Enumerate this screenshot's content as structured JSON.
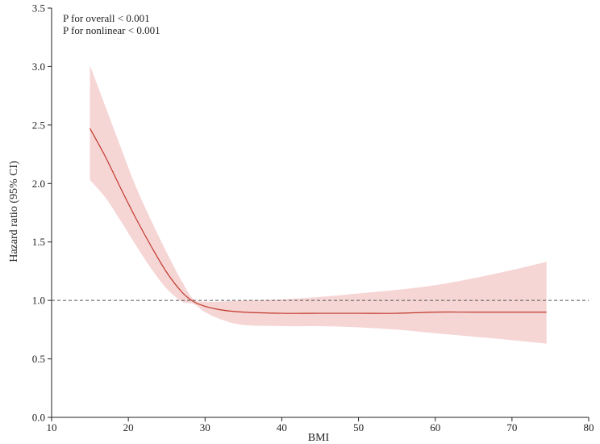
{
  "chart_data": {
    "type": "line",
    "xlabel": "BMI",
    "ylabel": "Hazard ratio (95% CI)",
    "xlim": [
      10,
      80
    ],
    "ylim": [
      0.0,
      3.5
    ],
    "xticks": [
      "10",
      "20",
      "30",
      "40",
      "50",
      "60",
      "70",
      "80"
    ],
    "yticks": [
      "0.0",
      "0.5",
      "1.0",
      "1.5",
      "2.0",
      "2.5",
      "3.0",
      "3.5"
    ],
    "annotations": [
      "P for overall < 0.001",
      "P for nonlinear < 0.001"
    ],
    "reference_line": {
      "y": 1.0,
      "style": "dashed",
      "color": "#555555"
    },
    "grid": false,
    "series": [
      {
        "color": "#c0392b",
        "band_color": "#f6d5d5",
        "x": [
          15,
          17,
          19,
          21,
          23,
          25,
          27,
          28.5,
          30,
          32,
          35,
          40,
          45,
          50,
          55,
          60,
          65,
          70,
          74.5
        ],
        "y": [
          2.47,
          2.23,
          1.96,
          1.7,
          1.46,
          1.24,
          1.07,
          0.99,
          0.95,
          0.92,
          0.9,
          0.89,
          0.89,
          0.89,
          0.89,
          0.9,
          0.9,
          0.9,
          0.9
        ],
        "lower": [
          2.03,
          1.88,
          1.68,
          1.47,
          1.27,
          1.1,
          0.99,
          0.97,
          0.9,
          0.84,
          0.79,
          0.78,
          0.78,
          0.77,
          0.75,
          0.72,
          0.69,
          0.66,
          0.63
        ],
        "upper": [
          3.01,
          2.66,
          2.31,
          1.97,
          1.68,
          1.41,
          1.16,
          1.01,
          0.99,
          0.99,
          1.0,
          1.01,
          1.03,
          1.06,
          1.09,
          1.13,
          1.19,
          1.26,
          1.33
        ]
      }
    ]
  }
}
